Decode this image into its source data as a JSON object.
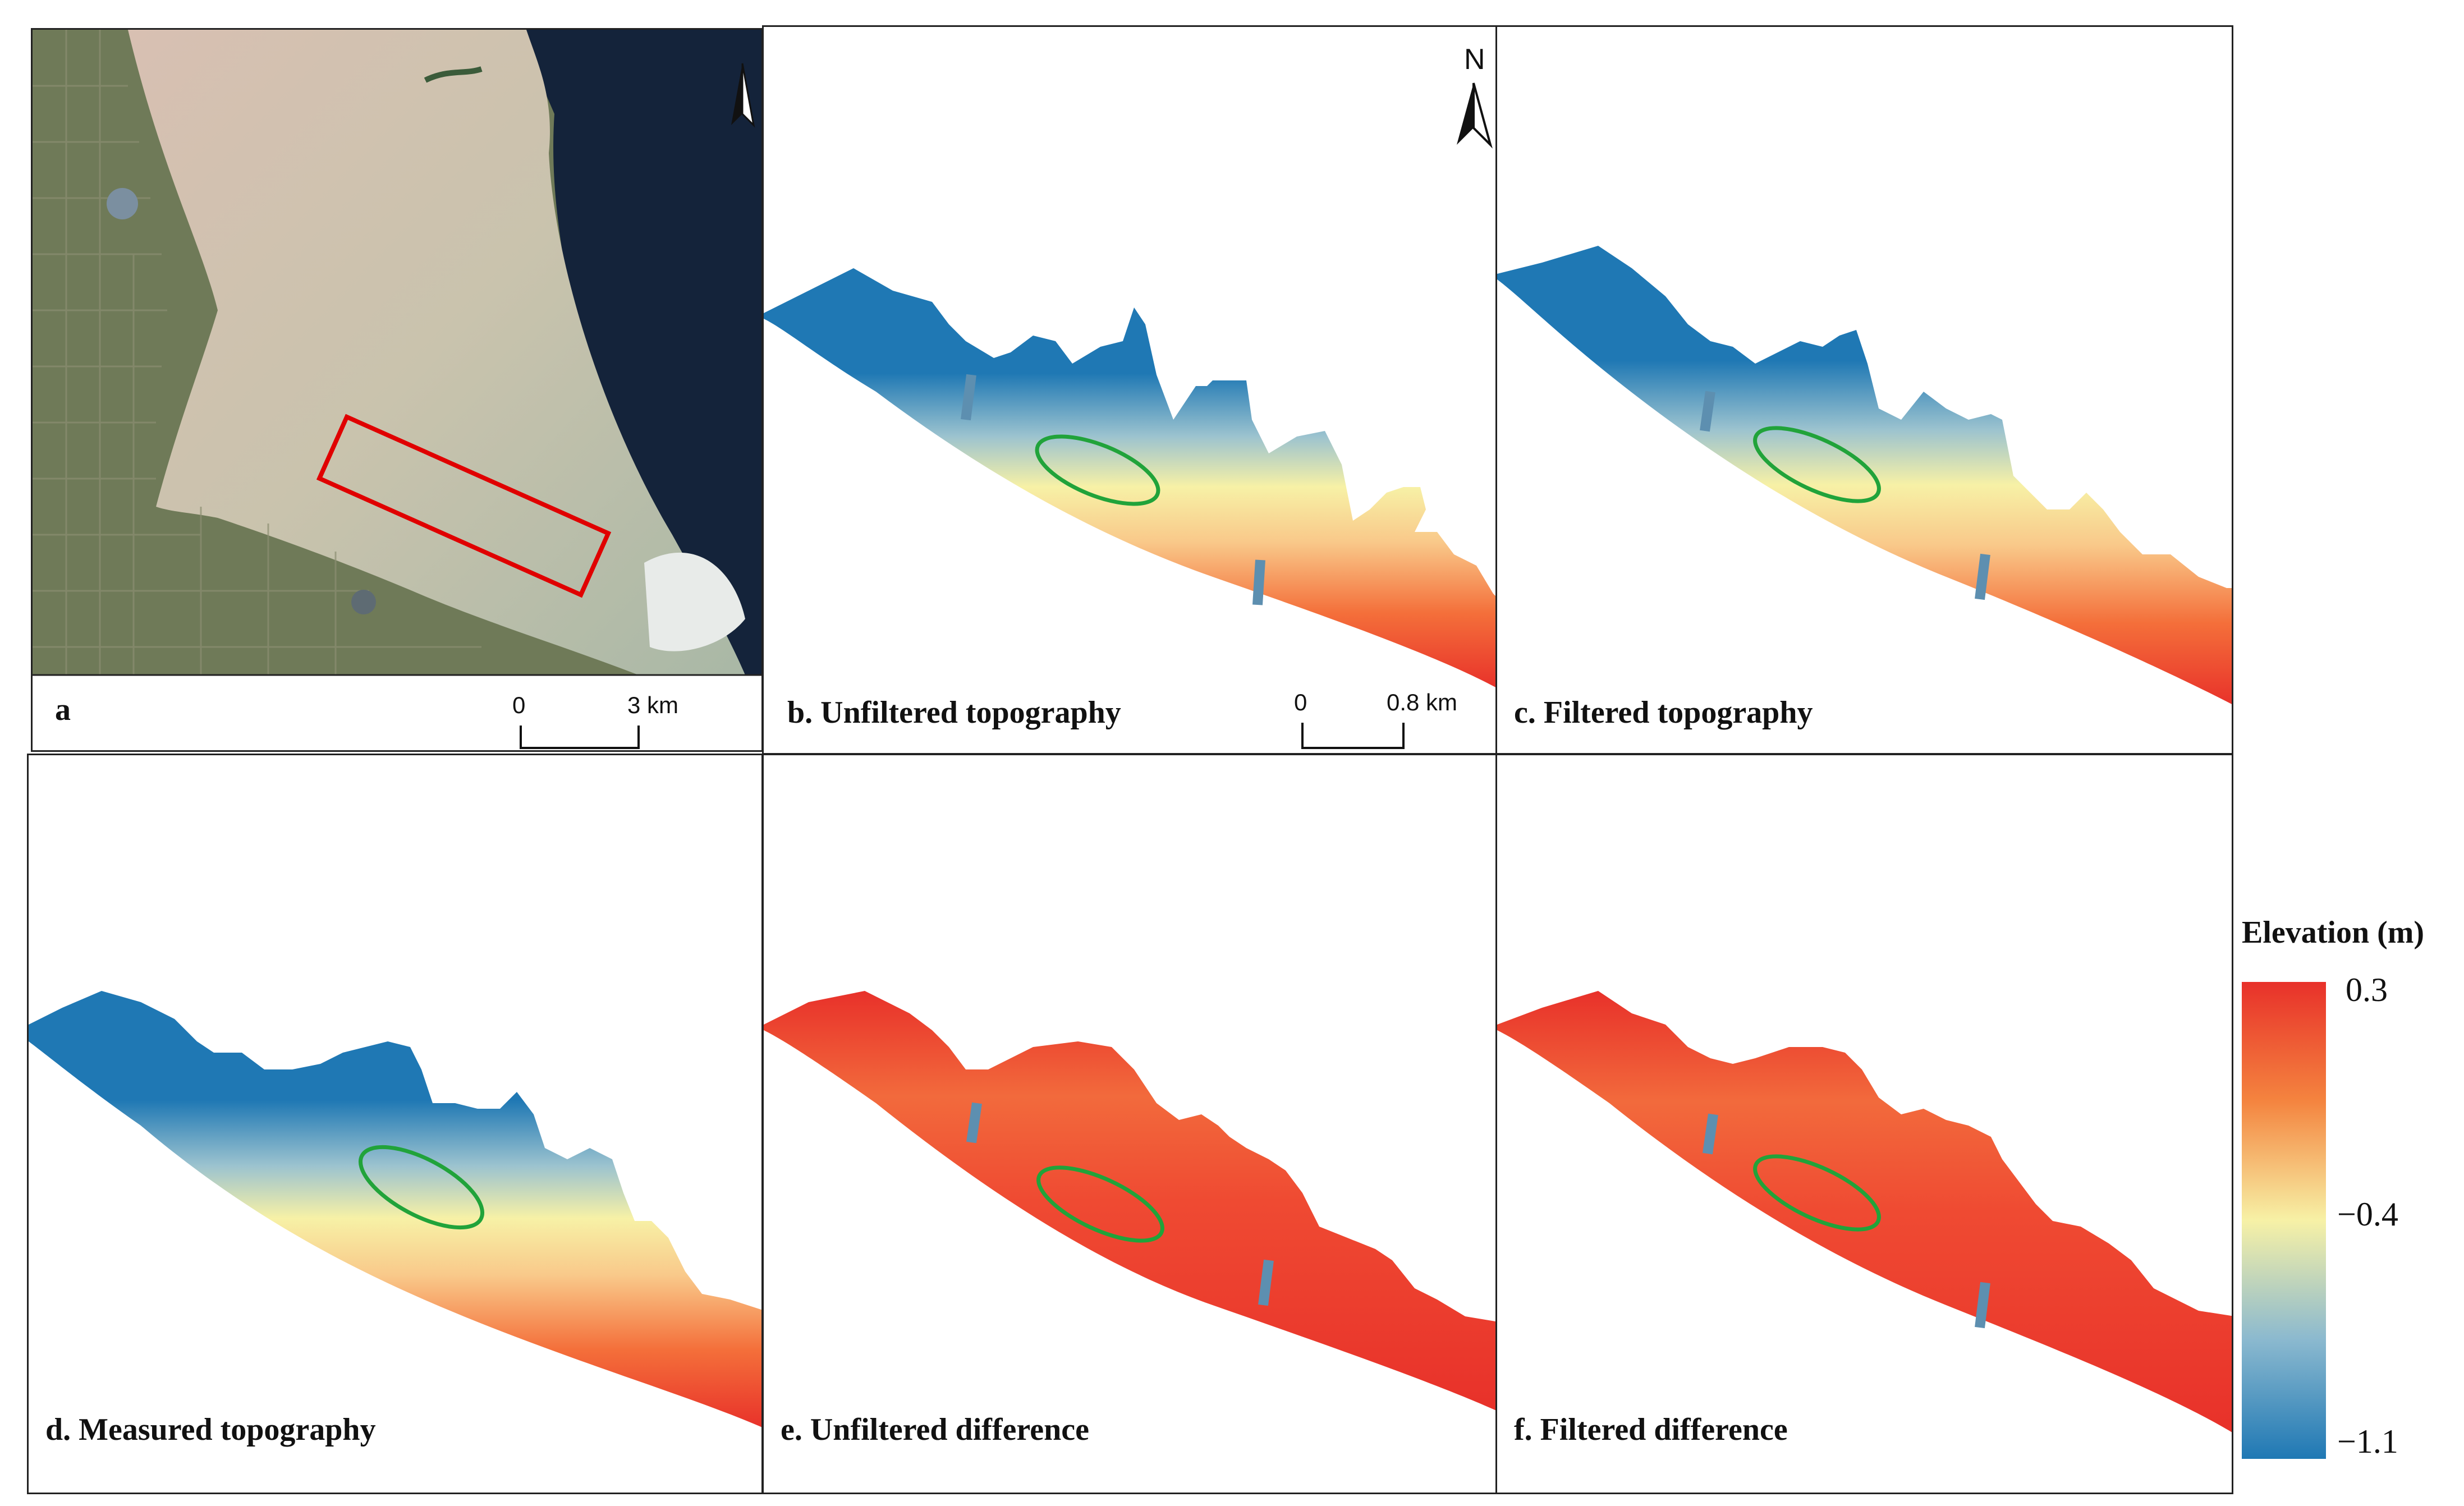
{
  "panels": {
    "a": {
      "label": "a",
      "scale_zero": "0",
      "scale_end": "3 km"
    },
    "b": {
      "label": "b. Unfiltered topography",
      "scale_zero": "0",
      "scale_end": "0.8 km",
      "north": "N"
    },
    "c": {
      "label": "c. Filtered topography"
    },
    "d": {
      "label": "d. Measured topography"
    },
    "e": {
      "label": "e. Unfiltered difference"
    },
    "f": {
      "label": "f. Filtered difference"
    }
  },
  "legend": {
    "title": "Elevation (m)",
    "max": "0.3",
    "mid": "−0.4",
    "min": "−1.1"
  },
  "colors": {
    "high": "#e8312a",
    "mid": "#f7f1a6",
    "low": "#1f78b4",
    "highlight_box": "#e00000",
    "ellipse": "#21a33a"
  }
}
